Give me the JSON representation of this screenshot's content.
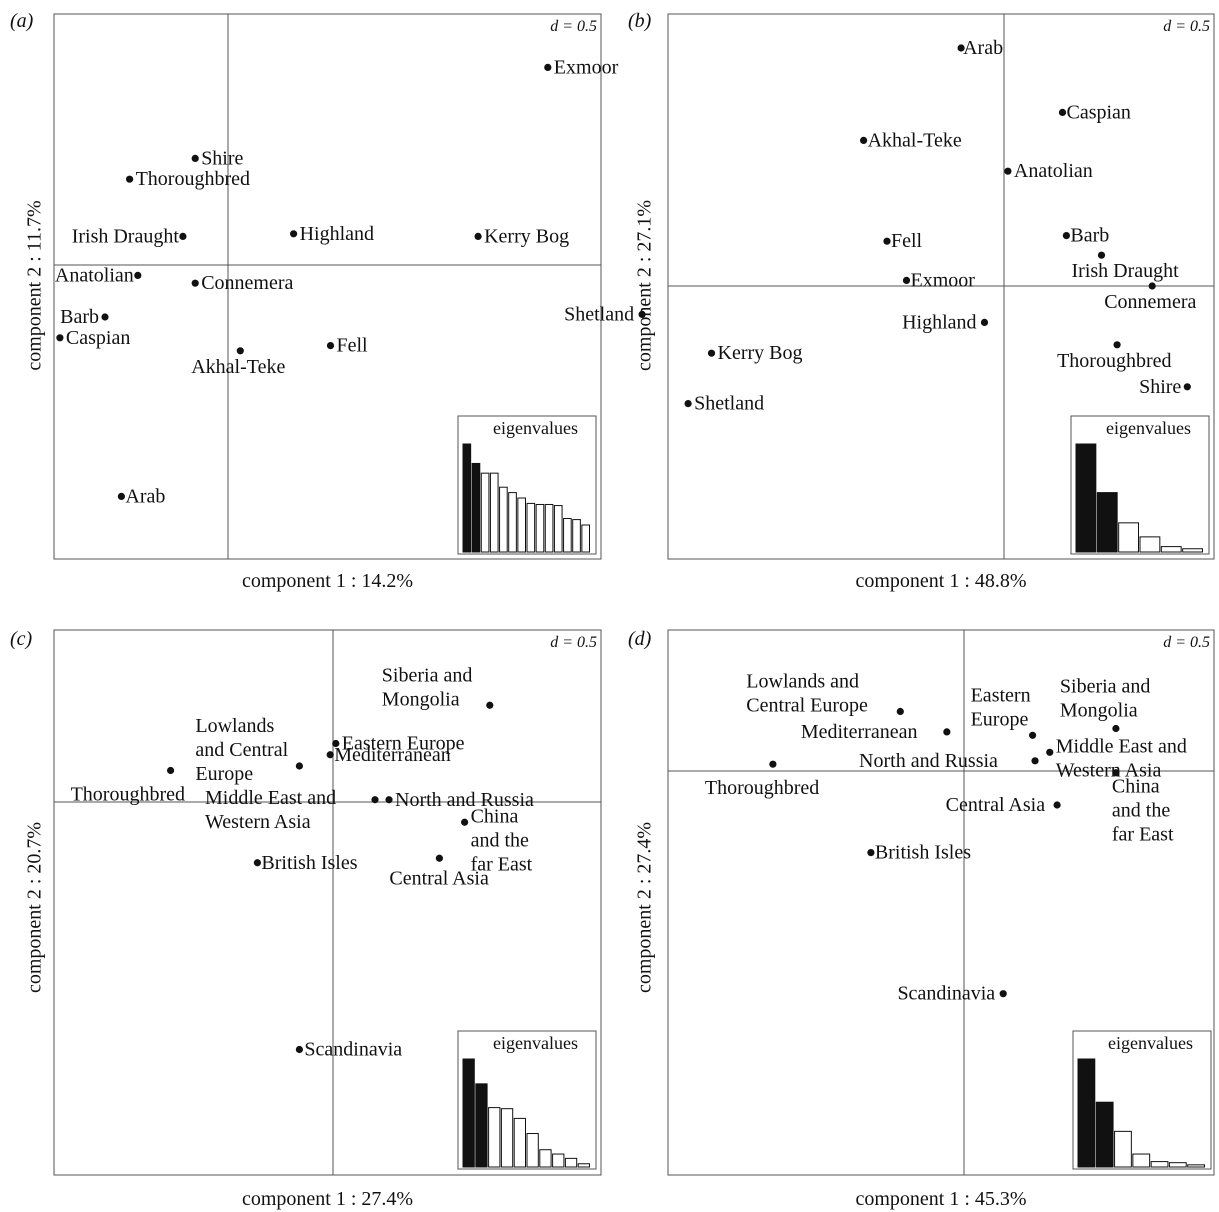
{
  "figure": {
    "distance_scale": "d = 0.5",
    "eigen_label": "eigenvalues"
  },
  "chart_data": [
    {
      "type": "scatter",
      "panel": "(a)",
      "xlabel": "component 1 : 14.2%",
      "ylabel": "component 2 : 11.7%",
      "points": [
        {
          "label": "Exmoor",
          "x": 0.78,
          "y": 0.76
        },
        {
          "label": "Shire",
          "x": -0.08,
          "y": 0.41
        },
        {
          "label": "Thoroughbred",
          "x": -0.24,
          "y": 0.33
        },
        {
          "label": "Irish Draught",
          "x": -0.11,
          "y": 0.11
        },
        {
          "label": "Highland",
          "x": 0.16,
          "y": 0.12
        },
        {
          "label": "Kerry Bog",
          "x": 0.61,
          "y": 0.11
        },
        {
          "label": "Anatolian",
          "x": -0.22,
          "y": -0.04
        },
        {
          "label": "Connemera",
          "x": -0.08,
          "y": -0.07
        },
        {
          "label": "Barb",
          "x": -0.3,
          "y": -0.2
        },
        {
          "label": "Shetland",
          "x": 1.01,
          "y": -0.19
        },
        {
          "label": "Caspian",
          "x": -0.41,
          "y": -0.28
        },
        {
          "label": "Akhal-Teke",
          "x": 0.03,
          "y": -0.33
        },
        {
          "label": "Fell",
          "x": 0.25,
          "y": -0.31
        },
        {
          "label": "Arab",
          "x": -0.26,
          "y": -0.89
        }
      ],
      "eigenvalues": [
        1.0,
        0.82,
        0.73,
        0.73,
        0.6,
        0.55,
        0.5,
        0.45,
        0.44,
        0.44,
        0.43,
        0.31,
        0.3,
        0.25
      ]
    },
    {
      "type": "scatter",
      "panel": "(b)",
      "xlabel": "component 1 : 48.8%",
      "ylabel": "component 2 : 27.1%",
      "points": [
        {
          "label": "Arab",
          "x": -0.11,
          "y": 0.85
        },
        {
          "label": "Caspian",
          "x": 0.15,
          "y": 0.62
        },
        {
          "label": "Akhal-Teke",
          "x": -0.36,
          "y": 0.52
        },
        {
          "label": "Anatolian",
          "x": 0.01,
          "y": 0.41
        },
        {
          "label": "Fell",
          "x": -0.3,
          "y": 0.16
        },
        {
          "label": "Barb",
          "x": 0.16,
          "y": 0.18
        },
        {
          "label": "Irish Draught",
          "x": 0.25,
          "y": 0.11
        },
        {
          "label": "Exmoor",
          "x": -0.25,
          "y": 0.02
        },
        {
          "label": "Connemera",
          "x": 0.38,
          "y": 0.0
        },
        {
          "label": "Highland",
          "x": -0.05,
          "y": -0.13
        },
        {
          "label": "Kerry Bog",
          "x": -0.75,
          "y": -0.24
        },
        {
          "label": "Thoroughbred",
          "x": 0.29,
          "y": -0.21
        },
        {
          "label": "Shetland",
          "x": -0.81,
          "y": -0.42
        },
        {
          "label": "Shire",
          "x": 0.47,
          "y": -0.36
        }
      ],
      "eigenvalues": [
        1.0,
        0.55,
        0.27,
        0.14,
        0.05,
        0.03
      ]
    },
    {
      "type": "scatter",
      "panel": "(c)",
      "xlabel": "component 1 : 27.4%",
      "ylabel": "component 2 : 20.7%",
      "points": [
        {
          "label": "Siberia and\nMongolia",
          "x": 0.56,
          "y": 0.43
        },
        {
          "label": "Eastern Europe",
          "x": 0.01,
          "y": 0.26
        },
        {
          "label": "Mediterranean",
          "x": -0.01,
          "y": 0.21
        },
        {
          "label": "Lowlands\nand Central\nEurope",
          "x": -0.12,
          "y": 0.16
        },
        {
          "label": "Thoroughbred",
          "x": -0.58,
          "y": 0.14
        },
        {
          "label": "Middle East and\nWestern Asia",
          "x": 0.15,
          "y": 0.01
        },
        {
          "label": "North  and Russia",
          "x": 0.2,
          "y": 0.01
        },
        {
          "label": "China\nand the\nfar East",
          "x": 0.47,
          "y": -0.09
        },
        {
          "label": "British Isles",
          "x": -0.27,
          "y": -0.27
        },
        {
          "label": "Central Asia",
          "x": 0.38,
          "y": -0.25
        },
        {
          "label": "Scandinavia",
          "x": -0.12,
          "y": -1.1
        }
      ],
      "eigenvalues": [
        1.0,
        0.77,
        0.55,
        0.54,
        0.45,
        0.31,
        0.16,
        0.12,
        0.08,
        0.03
      ]
    },
    {
      "type": "scatter",
      "panel": "(d)",
      "xlabel": "component 1 : 45.3%",
      "ylabel": "component 2 : 27.4%",
      "points": [
        {
          "label": "Lowlands and\nCentral Europe",
          "x": -0.26,
          "y": 0.35
        },
        {
          "label": "Mediterranean",
          "x": -0.07,
          "y": 0.23
        },
        {
          "label": "Eastern\nEurope",
          "x": 0.28,
          "y": 0.21
        },
        {
          "label": "Siberia and\nMongolia",
          "x": 0.62,
          "y": 0.25
        },
        {
          "label": "Middle East and\nWestern Asia",
          "x": 0.35,
          "y": 0.11
        },
        {
          "label": "North and Russia",
          "x": 0.29,
          "y": 0.06
        },
        {
          "label": "Thoroughbred",
          "x": -0.78,
          "y": 0.04
        },
        {
          "label": "China\nand the\nfar East",
          "x": 0.62,
          "y": -0.01
        },
        {
          "label": "Central Asia",
          "x": 0.38,
          "y": -0.2
        },
        {
          "label": "British Isles",
          "x": -0.38,
          "y": -0.48
        },
        {
          "label": "Scandinavia",
          "x": 0.16,
          "y": -1.31
        }
      ],
      "eigenvalues": [
        1.0,
        0.6,
        0.33,
        0.12,
        0.05,
        0.04,
        0.02
      ]
    }
  ]
}
